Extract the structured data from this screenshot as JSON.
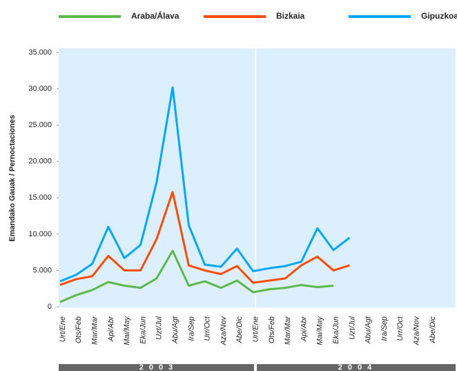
{
  "chart_data": {
    "type": "line",
    "y_label": "Emandako Gauak / Pernoctaciones",
    "groups": [
      "2003",
      "2004"
    ],
    "categories": [
      "Urt/Ene",
      "Ots/Feb",
      "Mar/Mar",
      "Api/Abr",
      "Mai/May",
      "Eka/Jun",
      "Uzt/Jul",
      "Abu/Agt",
      "Ira/Sep",
      "Urr/Oct",
      "Aza/Nov",
      "Abe/Dic",
      "Urt/Ene",
      "Ots/Feb",
      "Mar/Mar",
      "Api/Abr",
      "Mai/May",
      "Eka/Jun",
      "Uzt/Jul",
      "Abu/Agt",
      "Ira/Sep",
      "Urr/Oct",
      "Aza/Nov",
      "Abe/Dic"
    ],
    "series": [
      {
        "name": "Araba/Álava",
        "color": "#5cb848",
        "values": [
          650,
          1600,
          2300,
          3400,
          2900,
          2600,
          3900,
          7700,
          2900,
          3500,
          2600,
          3600,
          2000,
          2400,
          2600,
          3000,
          2700,
          2900,
          null,
          null,
          null,
          null,
          null,
          null
        ]
      },
      {
        "name": "Bizkaia",
        "color": "#ff4a00",
        "values": [
          3000,
          3800,
          4200,
          7000,
          5000,
          5000,
          9300,
          15800,
          5700,
          5000,
          4500,
          5600,
          3300,
          3600,
          3900,
          5700,
          6900,
          5000,
          5700,
          null,
          null,
          null,
          null,
          null
        ]
      },
      {
        "name": "Gipuzkoa",
        "color": "#00a6ff",
        "values": [
          3500,
          4400,
          5900,
          11000,
          6700,
          8500,
          17100,
          30200,
          11200,
          5800,
          5500,
          8000,
          4900,
          5300,
          5600,
          6200,
          10800,
          7800,
          9500,
          null,
          null,
          null,
          null,
          null
        ]
      }
    ],
    "ylim": [
      0,
      35000
    ],
    "yticks": [
      0,
      {
        "value": 5000,
        "label": "5.000"
      },
      {
        "value": 10000,
        "label": "10.000"
      },
      {
        "value": 15000,
        "label": "15.000"
      },
      {
        "value": 20000,
        "label": "20.000"
      },
      {
        "value": 25000,
        "label": "25.000"
      },
      {
        "value": 30000,
        "label": "30.000"
      },
      {
        "value": 35000,
        "label": "35.000"
      }
    ],
    "grid": false
  }
}
